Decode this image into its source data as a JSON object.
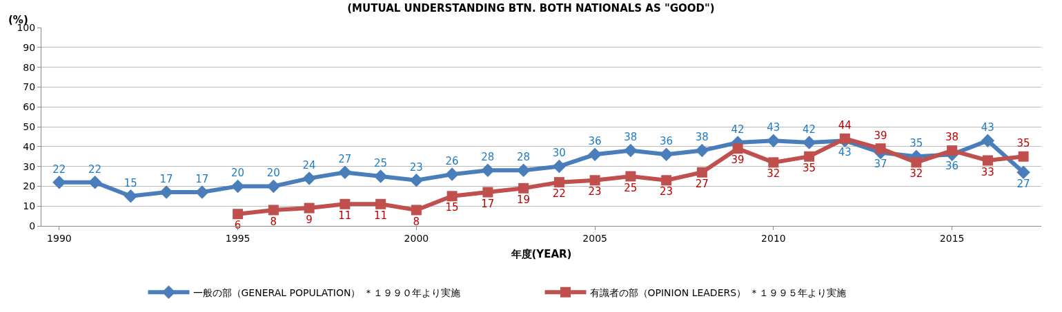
{
  "chart_data": {
    "type": "line",
    "title": "(MUTUAL UNDERSTANDING BTN. BOTH NATIONALS AS \"GOOD\")",
    "xlabel": "年度(YEAR)",
    "ylabel": "(%)",
    "x": [
      1990,
      1991,
      1992,
      1993,
      1994,
      1995,
      1996,
      1997,
      1998,
      1999,
      2000,
      2001,
      2002,
      2003,
      2004,
      2005,
      2006,
      2007,
      2008,
      2009,
      2010,
      2011,
      2012,
      2013,
      2014,
      2015,
      2016,
      2017
    ],
    "series": [
      {
        "name": "一般の部（GENERAL POPULATION） ＊１９９０年より実施",
        "color": "#4a7ebb",
        "marker": "diamond",
        "values": [
          22,
          22,
          15,
          17,
          17,
          20,
          20,
          24,
          27,
          25,
          23,
          26,
          28,
          28,
          30,
          36,
          38,
          36,
          38,
          42,
          43,
          42,
          43,
          37,
          35,
          36,
          43,
          27
        ]
      },
      {
        "name": "有識者の部（OPINION LEADERS） ＊１９９５年より実施",
        "color": "#c0504d",
        "marker": "square",
        "values": [
          null,
          null,
          null,
          null,
          null,
          6,
          8,
          9,
          11,
          11,
          8,
          15,
          17,
          19,
          22,
          23,
          25,
          23,
          27,
          39,
          32,
          35,
          44,
          39,
          32,
          38,
          33,
          35
        ]
      }
    ],
    "xlim": [
      1989.5,
      2017.5
    ],
    "xticks": [
      1990,
      1995,
      2000,
      2005,
      2010,
      2015
    ],
    "ylim": [
      0,
      100
    ],
    "yticks": [
      0,
      10,
      20,
      30,
      40,
      50,
      60,
      70,
      80,
      90,
      100
    ],
    "grid": "y",
    "legend": "bottom",
    "data_labels": true,
    "line_style": "solid"
  }
}
